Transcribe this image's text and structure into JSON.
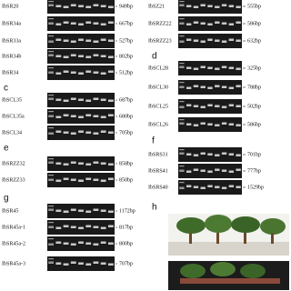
{
  "columns": [
    {
      "groups": [
        {
          "rows": [
            {
              "gene": "IbSR20",
              "size": "949bp"
            },
            {
              "gene": "IbSR34a",
              "size": "667bp"
            },
            {
              "gene": "IbSR33a",
              "size": "527bp"
            },
            {
              "gene": "IbSR34b",
              "size": "802bp"
            },
            {
              "gene": "IbSR34",
              "size": "512bp"
            }
          ]
        },
        {
          "letter": "c",
          "rows": [
            {
              "gene": "IbSCL35",
              "size": "687bp"
            },
            {
              "gene": "IbSCL35a",
              "size": "680bp"
            },
            {
              "gene": "IbSCL34",
              "size": "705bp"
            }
          ]
        },
        {
          "letter": "e",
          "rows": [
            {
              "gene": "IbSRZZ32",
              "size": "858bp"
            },
            {
              "gene": "IbSRZZ33",
              "size": "850bp"
            }
          ]
        },
        {
          "letter": "g",
          "rows": [
            {
              "gene": "IbSR45",
              "size": "1172bp"
            },
            {
              "gene": "IbSR45a-1",
              "size": "817bp"
            },
            {
              "gene": "IbSR45a-2",
              "size": "800bp"
            },
            {
              "gene": "IbSR45a-3",
              "size": "707bp"
            }
          ]
        }
      ]
    },
    {
      "groups": [
        {
          "rows": [
            {
              "gene": "IbSZ21",
              "size": "555bp"
            },
            {
              "gene": "IbSRZZ22",
              "size": "586bp"
            },
            {
              "gene": "IbSRZZ23",
              "size": "632bp"
            }
          ]
        },
        {
          "letter": "d",
          "rows": [
            {
              "gene": "IbSCL28",
              "size": "325bp"
            },
            {
              "gene": "IbSCL30",
              "size": "788bp"
            },
            {
              "gene": "IbSCL25",
              "size": "502bp"
            },
            {
              "gene": "IbSCL26",
              "size": "586bp"
            }
          ]
        },
        {
          "letter": "f",
          "rows": [
            {
              "gene": "IbSRS31",
              "size": "701bp"
            },
            {
              "gene": "IbSRS41",
              "size": "777bp"
            },
            {
              "gene": "IbSRS40",
              "size": "1529bp"
            }
          ]
        },
        {
          "letter": "h"
        }
      ]
    }
  ]
}
